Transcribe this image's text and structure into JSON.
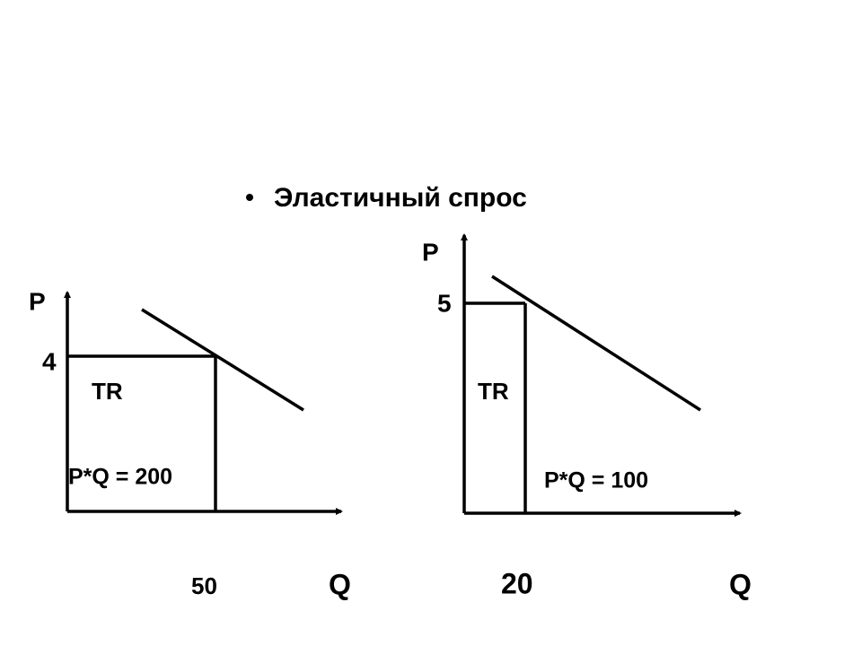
{
  "slide": {
    "bullet": "Эластичный спрос"
  },
  "diagrams": [
    {
      "y_axis": "P",
      "price": "4",
      "area": "TR",
      "revenue": "P*Q = 200",
      "quantity": "50",
      "x_axis": "Q"
    },
    {
      "y_axis": "P",
      "price": "5",
      "area": "TR",
      "revenue": "P*Q = 100",
      "quantity": "20",
      "x_axis": "Q"
    }
  ]
}
